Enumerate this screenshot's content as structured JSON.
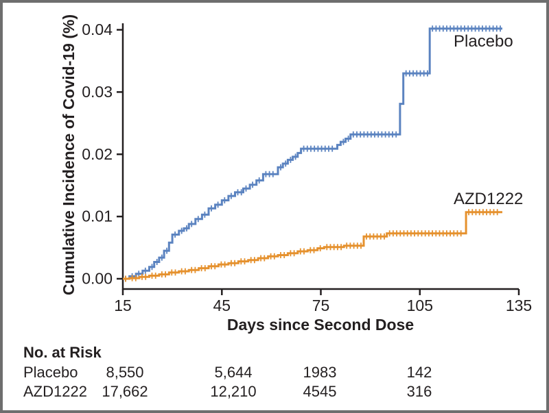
{
  "figure_title": "Cumulative Incidence of Covid-19",
  "colors": {
    "placebo_line": "#5b83c0",
    "azd1222_line": "#e5912e",
    "axis": "#231f20",
    "frame": "#6e6e6e",
    "background": "#ffffff"
  },
  "chart_data": {
    "type": "line",
    "subtype": "kaplan-meier-cumulative-incidence-step",
    "title": "",
    "xlabel": "Days since Second Dose",
    "ylabel": "Cumulative Incidence of Covid-19 (%)",
    "xlim": [
      15,
      135
    ],
    "ylim": [
      0,
      0.04
    ],
    "x_ticks": [
      "15",
      "45",
      "75",
      "105",
      "135"
    ],
    "y_tick_labels": [
      "0.00",
      "0.01",
      "0.02",
      "0.03",
      "0.04"
    ],
    "grid": false,
    "legend_position": "inline-labels-on-plot",
    "censor_ticks": true,
    "series": [
      {
        "name": "Placebo",
        "color": "#5b83c0",
        "points": [
          [
            15,
            0
          ],
          [
            17,
            0.0004
          ],
          [
            19,
            0.0008
          ],
          [
            21,
            0.0013
          ],
          [
            23,
            0.0019
          ],
          [
            24.5,
            0.0027
          ],
          [
            26,
            0.0034
          ],
          [
            27.5,
            0.0045
          ],
          [
            29,
            0.0058
          ],
          [
            30,
            0.0071
          ],
          [
            32,
            0.0077
          ],
          [
            33.5,
            0.0081
          ],
          [
            35,
            0.0088
          ],
          [
            37,
            0.0096
          ],
          [
            39,
            0.0103
          ],
          [
            41,
            0.0113
          ],
          [
            43,
            0.0119
          ],
          [
            45,
            0.0126
          ],
          [
            47,
            0.0133
          ],
          [
            49,
            0.0139
          ],
          [
            51.5,
            0.0145
          ],
          [
            53.5,
            0.0151
          ],
          [
            55.5,
            0.0158
          ],
          [
            57.5,
            0.0168
          ],
          [
            62,
            0.0179
          ],
          [
            63.5,
            0.0185
          ],
          [
            65,
            0.0191
          ],
          [
            66.5,
            0.0196
          ],
          [
            68,
            0.0202
          ],
          [
            69,
            0.0209
          ],
          [
            80,
            0.0215
          ],
          [
            81,
            0.022
          ],
          [
            82.5,
            0.0225
          ],
          [
            84,
            0.0232
          ],
          [
            99,
            0.0281
          ],
          [
            100,
            0.033
          ],
          [
            108,
            0.0402
          ],
          [
            130,
            0.0402
          ]
        ]
      },
      {
        "name": "AZD1222",
        "color": "#e5912e",
        "points": [
          [
            15,
            0
          ],
          [
            17,
            0.0001
          ],
          [
            20,
            0.0003
          ],
          [
            23,
            0.0005
          ],
          [
            26,
            0.0007
          ],
          [
            29,
            0.001
          ],
          [
            32,
            0.0012
          ],
          [
            35,
            0.0014
          ],
          [
            38,
            0.0017
          ],
          [
            41,
            0.002
          ],
          [
            44,
            0.0023
          ],
          [
            47,
            0.0025
          ],
          [
            50,
            0.0028
          ],
          [
            53,
            0.003
          ],
          [
            56,
            0.0033
          ],
          [
            59,
            0.0036
          ],
          [
            62,
            0.0038
          ],
          [
            65,
            0.0041
          ],
          [
            68,
            0.0044
          ],
          [
            71,
            0.0046
          ],
          [
            74,
            0.0049
          ],
          [
            76,
            0.0051
          ],
          [
            82,
            0.0053
          ],
          [
            88,
            0.0068
          ],
          [
            95,
            0.0073
          ],
          [
            119,
            0.0107
          ],
          [
            130,
            0.0107
          ]
        ]
      }
    ]
  },
  "risk_table": {
    "title": "No. at Risk",
    "timepoints": [
      "15",
      "45",
      "75",
      "105"
    ],
    "rows": [
      {
        "name": "Placebo",
        "values": [
          "8,550",
          "5,644",
          "1983",
          "142"
        ]
      },
      {
        "name": "AZD1222",
        "values": [
          "17,662",
          "12,210",
          "4545",
          "316"
        ]
      }
    ]
  }
}
